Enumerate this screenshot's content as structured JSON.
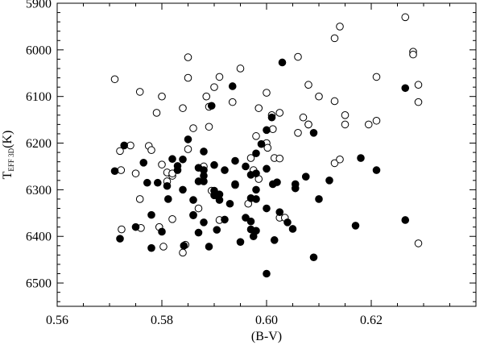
{
  "chart_data": {
    "type": "scatter",
    "title": "",
    "xlabel": "(B-V)",
    "ylabel": {
      "main": "T",
      "subscript": "EFF 3D",
      "suffix": "(K)"
    },
    "xlim": [
      0.56,
      0.64
    ],
    "ylim": [
      6550,
      5900
    ],
    "y_inverted": true,
    "grid": false,
    "x_ticks": [
      0.56,
      0.58,
      0.6,
      0.62
    ],
    "x_tick_labels": [
      "0.56",
      "0.58",
      "0.60",
      "0.62"
    ],
    "x_minor_step": 0.005,
    "y_ticks": [
      5900,
      6000,
      6100,
      6200,
      6300,
      6400,
      6500
    ],
    "y_tick_labels": [
      "5900",
      "6000",
      "6100",
      "6200",
      "6300",
      "6400",
      "6500"
    ],
    "y_minor_step": 20,
    "series": [
      {
        "marker": "open-circle",
        "points": [
          [
            0.571,
            6063
          ],
          [
            0.572,
            6217
          ],
          [
            0.5722,
            6258
          ],
          [
            0.5723,
            6385
          ],
          [
            0.574,
            6205
          ],
          [
            0.575,
            6265
          ],
          [
            0.5758,
            6320
          ],
          [
            0.5758,
            6090
          ],
          [
            0.576,
            6382
          ],
          [
            0.5775,
            6206
          ],
          [
            0.578,
            6215
          ],
          [
            0.579,
            6135
          ],
          [
            0.5795,
            6380
          ],
          [
            0.58,
            6100
          ],
          [
            0.58,
            6246
          ],
          [
            0.5803,
            6422
          ],
          [
            0.581,
            6263
          ],
          [
            0.581,
            6282
          ],
          [
            0.582,
            6270
          ],
          [
            0.582,
            6265
          ],
          [
            0.582,
            6363
          ],
          [
            0.584,
            6125
          ],
          [
            0.584,
            6435
          ],
          [
            0.5845,
            6418
          ],
          [
            0.585,
            6016
          ],
          [
            0.585,
            6060
          ],
          [
            0.585,
            6213
          ],
          [
            0.586,
            6168
          ],
          [
            0.586,
            6355
          ],
          [
            0.587,
            6340
          ],
          [
            0.588,
            6250
          ],
          [
            0.5885,
            6100
          ],
          [
            0.589,
            6165
          ],
          [
            0.589,
            6122
          ],
          [
            0.5895,
            6302
          ],
          [
            0.59,
            6080
          ],
          [
            0.591,
            6058
          ],
          [
            0.591,
            6365
          ],
          [
            0.5935,
            6112
          ],
          [
            0.594,
            6290
          ],
          [
            0.595,
            6040
          ],
          [
            0.5965,
            6330
          ],
          [
            0.597,
            6232
          ],
          [
            0.5975,
            6258
          ],
          [
            0.598,
            6185
          ],
          [
            0.5985,
            6125
          ],
          [
            0.5985,
            6277
          ],
          [
            0.6,
            6200
          ],
          [
            0.6,
            6092
          ],
          [
            0.6002,
            6210
          ],
          [
            0.601,
            6140
          ],
          [
            0.6012,
            6170
          ],
          [
            0.6015,
            6232
          ],
          [
            0.6025,
            6135
          ],
          [
            0.6025,
            6233
          ],
          [
            0.6025,
            6360
          ],
          [
            0.6035,
            6360
          ],
          [
            0.606,
            6015
          ],
          [
            0.606,
            6178
          ],
          [
            0.607,
            6145
          ],
          [
            0.608,
            6075
          ],
          [
            0.608,
            6160
          ],
          [
            0.608,
            6160
          ],
          [
            0.61,
            6100
          ],
          [
            0.613,
            5975
          ],
          [
            0.613,
            6110
          ],
          [
            0.613,
            6243
          ],
          [
            0.614,
            5950
          ],
          [
            0.614,
            6235
          ],
          [
            0.615,
            6140
          ],
          [
            0.615,
            6160
          ],
          [
            0.6195,
            6160
          ],
          [
            0.621,
            6152
          ],
          [
            0.621,
            6058
          ],
          [
            0.6265,
            5930
          ],
          [
            0.628,
            6004
          ],
          [
            0.628,
            6010
          ],
          [
            0.629,
            6075
          ],
          [
            0.629,
            6112
          ],
          [
            0.629,
            6415
          ]
        ]
      },
      {
        "marker": "filled-circle",
        "points": [
          [
            0.571,
            6260
          ],
          [
            0.572,
            6405
          ],
          [
            0.5728,
            6205
          ],
          [
            0.575,
            6380
          ],
          [
            0.5765,
            6242
          ],
          [
            0.5772,
            6285
          ],
          [
            0.578,
            6354
          ],
          [
            0.578,
            6425
          ],
          [
            0.5792,
            6285
          ],
          [
            0.58,
            6390
          ],
          [
            0.581,
            6292
          ],
          [
            0.5812,
            6320
          ],
          [
            0.582,
            6234
          ],
          [
            0.583,
            6249
          ],
          [
            0.583,
            6258
          ],
          [
            0.584,
            6235
          ],
          [
            0.584,
            6300
          ],
          [
            0.5842,
            6420
          ],
          [
            0.585,
            6192
          ],
          [
            0.586,
            6322
          ],
          [
            0.586,
            6354
          ],
          [
            0.587,
            6253
          ],
          [
            0.587,
            6282
          ],
          [
            0.587,
            6392
          ],
          [
            0.588,
            6218
          ],
          [
            0.588,
            6258
          ],
          [
            0.588,
            6270
          ],
          [
            0.588,
            6282
          ],
          [
            0.588,
            6370
          ],
          [
            0.589,
            6422
          ],
          [
            0.5895,
            6120
          ],
          [
            0.59,
            6247
          ],
          [
            0.59,
            6302
          ],
          [
            0.59,
            6312
          ],
          [
            0.5905,
            6386
          ],
          [
            0.591,
            6310
          ],
          [
            0.591,
            6322
          ],
          [
            0.592,
            6258
          ],
          [
            0.592,
            6364
          ],
          [
            0.593,
            6330
          ],
          [
            0.5935,
            6078
          ],
          [
            0.594,
            6238
          ],
          [
            0.594,
            6288
          ],
          [
            0.595,
            6412
          ],
          [
            0.596,
            6250
          ],
          [
            0.596,
            6360
          ],
          [
            0.597,
            6268
          ],
          [
            0.597,
            6318
          ],
          [
            0.597,
            6368
          ],
          [
            0.597,
            6385
          ],
          [
            0.5975,
            6400
          ],
          [
            0.598,
            6222
          ],
          [
            0.598,
            6265
          ],
          [
            0.598,
            6300
          ],
          [
            0.598,
            6320
          ],
          [
            0.598,
            6388
          ],
          [
            0.599,
            6202
          ],
          [
            0.6,
            6172
          ],
          [
            0.6,
            6255
          ],
          [
            0.6,
            6340
          ],
          [
            0.6,
            6480
          ],
          [
            0.601,
            6145
          ],
          [
            0.6012,
            6288
          ],
          [
            0.6015,
            6408
          ],
          [
            0.602,
            6284
          ],
          [
            0.6025,
            6348
          ],
          [
            0.603,
            6027
          ],
          [
            0.604,
            6370
          ],
          [
            0.605,
            6384
          ],
          [
            0.6055,
            6288
          ],
          [
            0.6055,
            6297
          ],
          [
            0.6075,
            6272
          ],
          [
            0.609,
            6178
          ],
          [
            0.609,
            6445
          ],
          [
            0.61,
            6320
          ],
          [
            0.612,
            6280
          ],
          [
            0.617,
            6377
          ],
          [
            0.618,
            6232
          ],
          [
            0.621,
            6258
          ],
          [
            0.6265,
            6082
          ],
          [
            0.6265,
            6365
          ]
        ]
      }
    ]
  }
}
